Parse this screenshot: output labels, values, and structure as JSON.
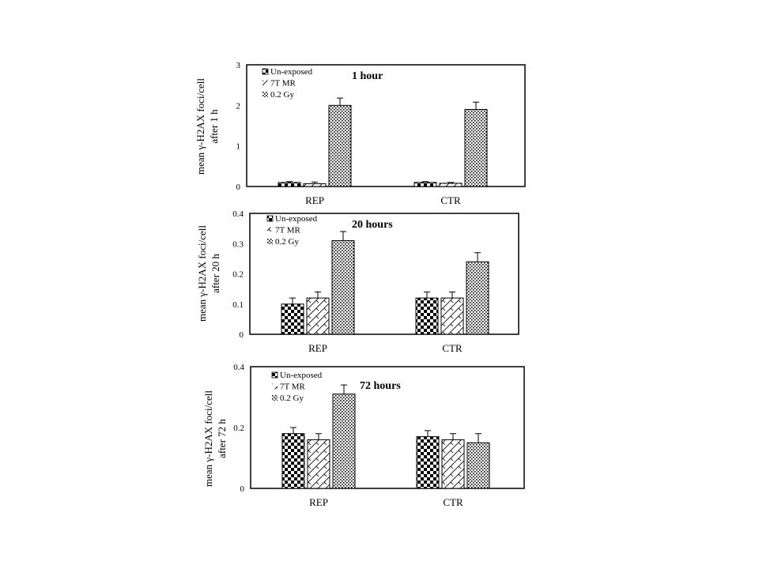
{
  "chart_data": [
    {
      "type": "bar",
      "title": "1 hour",
      "ylabel": [
        "mean γ-H2AX foci/cell",
        "after 1 h"
      ],
      "categories": [
        "REP",
        "CTR"
      ],
      "ylim": [
        0,
        3
      ],
      "yticks": [
        "0",
        "1",
        "2",
        "3"
      ],
      "series": [
        {
          "name": "Un-exposed",
          "values": [
            0.1,
            0.1
          ],
          "errors": [
            0.02,
            0.02
          ]
        },
        {
          "name": "7T MR",
          "values": [
            0.07,
            0.08
          ],
          "errors": [
            0.04,
            0.02
          ]
        },
        {
          "name": "0.2 Gy",
          "values": [
            2.0,
            1.9
          ],
          "errors": [
            0.18,
            0.18
          ]
        }
      ]
    },
    {
      "type": "bar",
      "title": "20 hours",
      "ylabel": [
        "mean γ-H2AX foci/cell",
        "after  20 h"
      ],
      "categories": [
        "REP",
        "CTR"
      ],
      "ylim": [
        0,
        0.4
      ],
      "yticks": [
        "0",
        "0.1",
        "0.2",
        "0.3",
        "0.4"
      ],
      "series": [
        {
          "name": "Un-exposed",
          "values": [
            0.1,
            0.12
          ],
          "errors": [
            0.02,
            0.02
          ]
        },
        {
          "name": "7T MR",
          "values": [
            0.12,
            0.12
          ],
          "errors": [
            0.02,
            0.02
          ]
        },
        {
          "name": "0.2 Gy",
          "values": [
            0.31,
            0.24
          ],
          "errors": [
            0.03,
            0.03
          ]
        }
      ]
    },
    {
      "type": "bar",
      "title": "72 hours",
      "ylabel": [
        "mean γ-H2AX foci/cell",
        "after 72 h"
      ],
      "categories": [
        "REP",
        "CTR"
      ],
      "ylim": [
        0,
        0.4
      ],
      "yticks": [
        "0",
        "0.2",
        "0.4"
      ],
      "series": [
        {
          "name": "Un-exposed",
          "values": [
            0.18,
            0.17
          ],
          "errors": [
            0.02,
            0.02
          ]
        },
        {
          "name": "7T MR",
          "values": [
            0.16,
            0.16
          ],
          "errors": [
            0.02,
            0.02
          ]
        },
        {
          "name": "0.2 Gy",
          "values": [
            0.31,
            0.15
          ],
          "errors": [
            0.03,
            0.03
          ]
        }
      ]
    }
  ]
}
